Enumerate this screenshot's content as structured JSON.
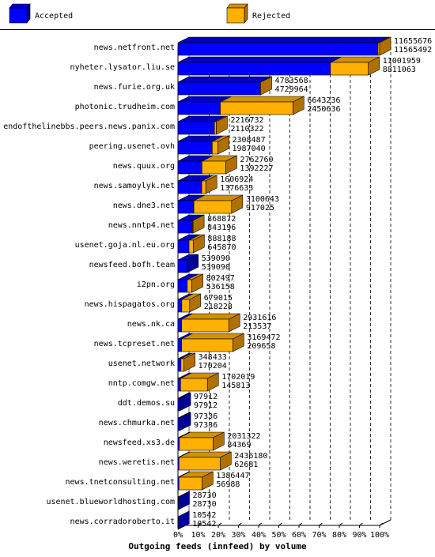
{
  "chart_data": {
    "type": "bar",
    "orientation": "horizontal",
    "stacked": true,
    "title": "",
    "xlabel": "Outgoing feeds (innfeed) by volume",
    "ylabel": "",
    "xlim": [
      0,
      100
    ],
    "x_ticks": [
      "0%",
      "10%",
      "20%",
      "30%",
      "40%",
      "50%",
      "60%",
      "70%",
      "80%",
      "90%",
      "100%"
    ],
    "grid": true,
    "legend_position": "top",
    "series": [
      {
        "name": "Accepted",
        "color": "#0000ff",
        "side_color": "#000099",
        "top_color": "#0000c0"
      },
      {
        "name": "Rejected",
        "color": "#ffb000",
        "side_color": "#b07000",
        "top_color": "#d09000"
      }
    ],
    "rows": [
      {
        "site": "news.netfront.net",
        "offered": "11655676",
        "accepted": "11565492",
        "total_pct": 100.0,
        "accepted_pct": 99.2
      },
      {
        "site": "nyheter.lysator.liu.se",
        "offered": "11001959",
        "accepted": "8811063",
        "total_pct": 94.4,
        "accepted_pct": 75.6
      },
      {
        "site": "news.furie.org.uk",
        "offered": "4783568",
        "accepted": "4729964",
        "total_pct": 41.0,
        "accepted_pct": 40.6
      },
      {
        "site": "photonic.trudheim.com",
        "offered": "6643236",
        "accepted": "2450636",
        "total_pct": 57.0,
        "accepted_pct": 21.0
      },
      {
        "site": "endofthelinebbs.peers.news.panix.com",
        "offered": "2216732",
        "accepted": "2110322",
        "total_pct": 19.0,
        "accepted_pct": 18.1
      },
      {
        "site": "peering.usenet.ovh",
        "offered": "2308487",
        "accepted": "1987040",
        "total_pct": 19.8,
        "accepted_pct": 17.0
      },
      {
        "site": "news.quux.org",
        "offered": "2762760",
        "accepted": "1392227",
        "total_pct": 23.7,
        "accepted_pct": 11.9
      },
      {
        "site": "news.samoylyk.net",
        "offered": "1606924",
        "accepted": "1376633",
        "total_pct": 13.8,
        "accepted_pct": 11.8
      },
      {
        "site": "news.dne3.net",
        "offered": "3100643",
        "accepted": "917025",
        "total_pct": 26.6,
        "accepted_pct": 7.9
      },
      {
        "site": "news.nntp4.net",
        "offered": "868872",
        "accepted": "843196",
        "total_pct": 7.5,
        "accepted_pct": 7.2
      },
      {
        "site": "usenet.goja.nl.eu.org",
        "offered": "888188",
        "accepted": "645870",
        "total_pct": 7.6,
        "accepted_pct": 5.5
      },
      {
        "site": "newsfeed.bofh.team",
        "offered": "539090",
        "accepted": "539090",
        "total_pct": 4.6,
        "accepted_pct": 4.6
      },
      {
        "site": "i2pn.org",
        "offered": "802497",
        "accepted": "536158",
        "total_pct": 6.9,
        "accepted_pct": 4.6
      },
      {
        "site": "news.hispagatos.org",
        "offered": "679015",
        "accepted": "218228",
        "total_pct": 5.8,
        "accepted_pct": 1.9
      },
      {
        "site": "news.nk.ca",
        "offered": "2931616",
        "accepted": "213537",
        "total_pct": 25.2,
        "accepted_pct": 1.8
      },
      {
        "site": "news.tcpreset.net",
        "offered": "3169472",
        "accepted": "209658",
        "total_pct": 27.2,
        "accepted_pct": 1.8
      },
      {
        "site": "usenet.network",
        "offered": "348433",
        "accepted": "170204",
        "total_pct": 3.0,
        "accepted_pct": 1.5
      },
      {
        "site": "nntp.comgw.net",
        "offered": "1702019",
        "accepted": "145813",
        "total_pct": 14.6,
        "accepted_pct": 1.3
      },
      {
        "site": "ddt.demos.su",
        "offered": "97912",
        "accepted": "97912",
        "total_pct": 0.8,
        "accepted_pct": 0.8
      },
      {
        "site": "news.chmurka.net",
        "offered": "97336",
        "accepted": "97336",
        "total_pct": 0.8,
        "accepted_pct": 0.8
      },
      {
        "site": "newsfeed.xs3.de",
        "offered": "2031322",
        "accepted": "84369",
        "total_pct": 17.4,
        "accepted_pct": 0.7
      },
      {
        "site": "news.weretis.net",
        "offered": "2436180",
        "accepted": "62681",
        "total_pct": 20.9,
        "accepted_pct": 0.5
      },
      {
        "site": "news.tnetconsulting.net",
        "offered": "1386447",
        "accepted": "56988",
        "total_pct": 11.9,
        "accepted_pct": 0.5
      },
      {
        "site": "usenet.blueworldhosting.com",
        "offered": "28730",
        "accepted": "28730",
        "total_pct": 0.2,
        "accepted_pct": 0.2
      },
      {
        "site": "news.corradoroberto.it",
        "offered": "10542",
        "accepted": "10542",
        "total_pct": 0.1,
        "accepted_pct": 0.1
      }
    ]
  }
}
